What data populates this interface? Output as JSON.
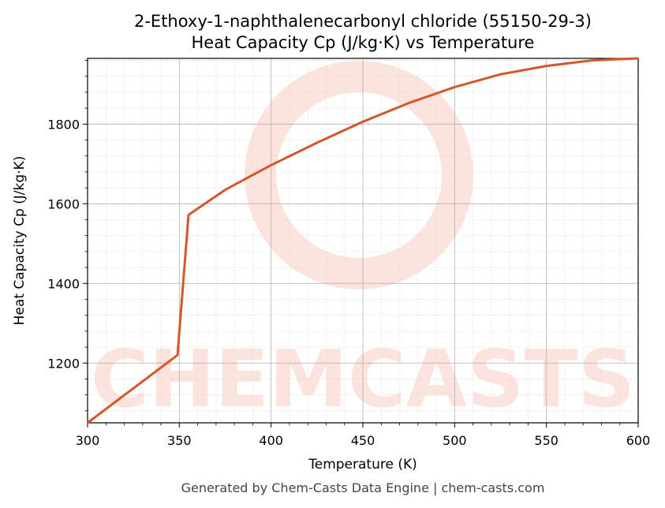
{
  "chart_data": {
    "type": "line",
    "title_line1": "2-Ethoxy-1-naphthalenecarbonyl chloride (55150-29-3)",
    "title_line2": "Heat Capacity Cp (J/kg·K) vs Temperature",
    "xlabel": "Temperature (K)",
    "ylabel": "Heat Capacity Cp (J/kg·K)",
    "xlim": [
      300,
      600
    ],
    "ylim": [
      1050,
      1965
    ],
    "x_ticks": [
      300,
      350,
      400,
      450,
      500,
      550,
      600
    ],
    "y_ticks": [
      1200,
      1400,
      1600,
      1800
    ],
    "grid": true,
    "series": [
      {
        "color": "#d4572a",
        "x": [
          300,
          349,
          355,
          375,
          400,
          425,
          450,
          475,
          500,
          525,
          550,
          575,
          600
        ],
        "y": [
          1050,
          1220,
          1572,
          1635,
          1697,
          1753,
          1806,
          1853,
          1893,
          1925,
          1946,
          1960,
          1965
        ]
      }
    ]
  },
  "watermark": {
    "text": "CHEMCASTS",
    "color": "#fde3dd"
  },
  "footer": "Generated by Chem-Casts Data Engine | chem-casts.com"
}
